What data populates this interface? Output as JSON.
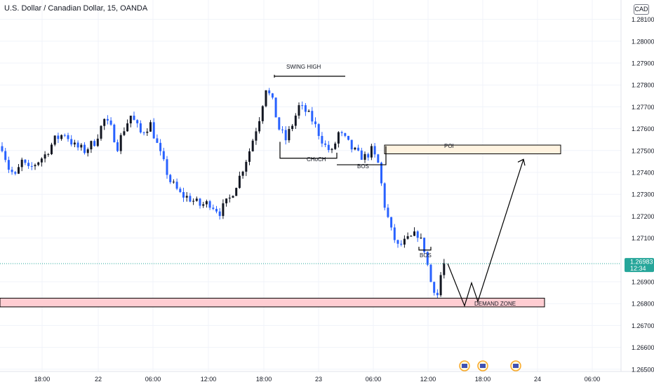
{
  "header": {
    "title": "U.S. Dollar / Canadian Dollar, 15, OANDA",
    "currency": "CAD"
  },
  "price_label": {
    "price": "1.26983",
    "countdown": "12:34",
    "color": "#26a69a"
  },
  "colors": {
    "up": "#131722",
    "down": "#2962ff",
    "grid": "#f0f3fa",
    "poi_fill": "#fff3e0",
    "demand_fill": "#ffcdd2",
    "markup": "#000000"
  },
  "icons": [
    "event-flag-icon",
    "event-flag-icon",
    "event-flag-icon"
  ],
  "chart_data": {
    "type": "candlestick",
    "symbol": "USDCAD",
    "timeframe": "15",
    "exchange": "OANDA",
    "y_ticks": [
      "1.28100",
      "1.28000",
      "1.27900",
      "1.27800",
      "1.27700",
      "1.27600",
      "1.27500",
      "1.27400",
      "1.27300",
      "1.27200",
      "1.27100",
      "1.26900",
      "1.26800",
      "1.26700",
      "1.26600",
      "1.26500"
    ],
    "x_ticks": [
      "18:00",
      "22",
      "06:00",
      "12:00",
      "18:00",
      "23",
      "06:00",
      "12:00",
      "18:00",
      "24",
      "06:00"
    ],
    "ylim": [
      1.265,
      1.2815
    ],
    "last_price": 1.26983,
    "grid": true,
    "price_path": [
      [
        0,
        1.2752
      ],
      [
        2,
        1.2742
      ],
      [
        4,
        1.2738
      ],
      [
        6,
        1.2745
      ],
      [
        8,
        1.2741
      ],
      [
        10,
        1.2744
      ],
      [
        13,
        1.2748
      ],
      [
        16,
        1.2755
      ],
      [
        19,
        1.2758
      ],
      [
        22,
        1.2752
      ],
      [
        25,
        1.275
      ],
      [
        28,
        1.2754
      ],
      [
        31,
        1.2764
      ],
      [
        33,
        1.276
      ],
      [
        35,
        1.2752
      ],
      [
        37,
        1.276
      ],
      [
        39,
        1.2766
      ],
      [
        42,
        1.2758
      ],
      [
        45,
        1.2762
      ],
      [
        48,
        1.2748
      ],
      [
        51,
        1.2736
      ],
      [
        54,
        1.273
      ],
      [
        57,
        1.2728
      ],
      [
        60,
        1.2725
      ],
      [
        63,
        1.2726
      ],
      [
        66,
        1.2722
      ],
      [
        69,
        1.2728
      ],
      [
        72,
        1.2738
      ],
      [
        75,
        1.275
      ],
      [
        78,
        1.2765
      ],
      [
        80,
        1.2779
      ],
      [
        82,
        1.2772
      ],
      [
        84,
        1.276
      ],
      [
        86,
        1.2755
      ],
      [
        88,
        1.2762
      ],
      [
        90,
        1.277
      ],
      [
        92,
        1.2768
      ],
      [
        94,
        1.2764
      ],
      [
        96,
        1.2758
      ],
      [
        98,
        1.2752
      ],
      [
        100,
        1.2749
      ],
      [
        102,
        1.2758
      ],
      [
        104,
        1.2755
      ],
      [
        106,
        1.2751
      ],
      [
        108,
        1.2748
      ],
      [
        110,
        1.2747
      ],
      [
        112,
        1.275
      ],
      [
        114,
        1.2744
      ],
      [
        116,
        1.2725
      ],
      [
        118,
        1.2713
      ],
      [
        120,
        1.2706
      ],
      [
        122,
        1.2708
      ],
      [
        124,
        1.271
      ],
      [
        126,
        1.2712
      ],
      [
        128,
        1.2705
      ],
      [
        130,
        1.269
      ],
      [
        132,
        1.2684
      ],
      [
        133,
        1.2693
      ],
      [
        134,
        1.2698
      ]
    ],
    "annotations": {
      "labels": [
        "SWING HIGH",
        "CHoCH",
        "BOS",
        "POI",
        "BOS",
        "DEMAND ZONE"
      ],
      "poi_zone": [
        1.27485,
        1.27525
      ],
      "demand_zone": [
        1.26785,
        1.26825
      ],
      "swing_high": 1.2784,
      "choch_level": 1.27465,
      "bos_levels": [
        1.27435,
        1.27045
      ],
      "projection": [
        [
          1.26983,
          0
        ],
        [
          1.2679,
          0
        ],
        [
          1.26895,
          0
        ],
        [
          1.2681,
          0
        ],
        [
          1.2746,
          0
        ]
      ]
    }
  }
}
